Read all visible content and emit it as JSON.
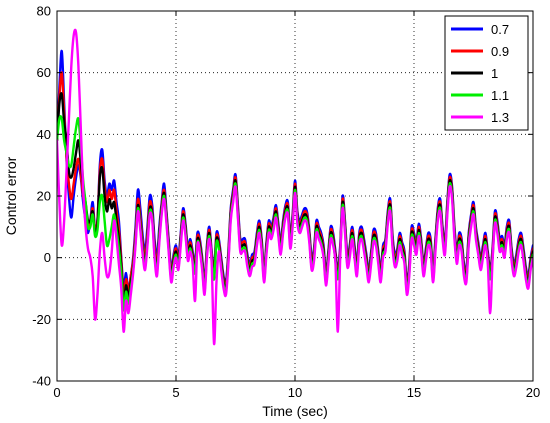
{
  "chart_data": {
    "type": "line",
    "title": "",
    "xlabel": "Time (sec)",
    "ylabel": "Control error",
    "xlim": [
      0,
      20
    ],
    "ylim": [
      -40,
      80
    ],
    "x_ticks": [
      0,
      5,
      10,
      15,
      20
    ],
    "y_ticks": [
      -40,
      -20,
      0,
      20,
      40,
      60,
      80
    ],
    "grid": true,
    "legend_position": "top-right",
    "x": [
      0.0,
      0.1,
      0.2,
      0.3,
      0.4,
      0.5,
      0.6,
      0.7,
      0.8,
      0.9,
      1.0,
      1.1,
      1.2,
      1.3,
      1.4,
      1.5,
      1.6,
      1.7,
      1.8,
      1.9,
      2.0,
      2.1,
      2.2,
      2.3,
      2.4,
      2.5,
      2.6,
      2.7,
      2.8,
      2.9,
      3.0,
      3.1,
      3.2,
      3.3,
      3.4,
      3.5,
      3.6,
      3.7,
      3.8,
      3.9,
      4.0,
      4.1,
      4.2,
      4.3,
      4.4,
      4.5,
      4.6,
      4.7,
      4.8,
      4.9,
      5.0,
      5.1,
      5.2,
      5.3,
      5.4,
      5.5,
      5.6,
      5.7,
      5.8,
      5.9,
      6.0,
      6.1,
      6.2,
      6.3,
      6.4,
      6.5,
      6.6,
      6.7,
      6.8,
      6.9,
      7.0,
      7.1,
      7.2,
      7.3,
      7.4,
      7.5,
      7.6,
      7.7,
      7.8,
      7.9,
      8.0,
      8.1,
      8.2,
      8.3,
      8.4,
      8.5,
      8.6,
      8.7,
      8.8,
      8.9,
      9.0,
      9.1,
      9.2,
      9.3,
      9.4,
      9.5,
      9.6,
      9.7,
      9.8,
      9.9,
      10.0,
      10.1,
      10.2,
      10.3,
      10.4,
      10.5,
      10.6,
      10.7,
      10.8,
      10.9,
      11.0,
      11.1,
      11.2,
      11.3,
      11.4,
      11.5,
      11.6,
      11.7,
      11.8,
      11.9,
      12.0,
      12.1,
      12.2,
      12.3,
      12.4,
      12.5,
      12.6,
      12.7,
      12.8,
      12.9,
      13.0,
      13.1,
      13.2,
      13.3,
      13.4,
      13.5,
      13.6,
      13.7,
      13.8,
      13.9,
      14.0,
      14.1,
      14.2,
      14.3,
      14.4,
      14.5,
      14.6,
      14.7,
      14.8,
      14.9,
      15.0,
      15.1,
      15.2,
      15.3,
      15.4,
      15.5,
      15.6,
      15.7,
      15.8,
      15.9,
      16.0,
      16.1,
      16.2,
      16.3,
      16.4,
      16.5,
      16.6,
      16.7,
      16.8,
      16.9,
      17.0,
      17.1,
      17.2,
      17.3,
      17.4,
      17.5,
      17.6,
      17.7,
      17.8,
      17.9,
      18.0,
      18.1,
      18.2,
      18.3,
      18.4,
      18.5,
      18.6,
      18.7,
      18.8,
      18.9,
      19.0,
      19.1,
      19.2,
      19.3,
      19.4,
      19.5,
      19.6,
      19.7,
      19.8,
      19.9,
      20.0
    ],
    "series": [
      {
        "name": "0.7",
        "color": "#0000ff",
        "values": [
          38.0,
          55.0,
          67.0,
          50.0,
          32.0,
          20.0,
          13.0,
          20.0,
          26.0,
          30.0,
          26.0,
          18.0,
          12.0,
          8.0,
          12.0,
          18.0,
          9.0,
          12.0,
          30.0,
          35.0,
          25.0,
          20.0,
          24.0,
          22.0,
          25.0,
          18.0,
          12.0,
          0.0,
          -10.0,
          -5.0,
          -11.0,
          -6.0,
          0.0,
          10.0,
          22.0,
          16.0,
          7.0,
          2.0,
          10.0,
          20.0,
          17.0,
          6.0,
          0.0,
          10.0,
          18.0,
          24.0,
          15.0,
          5.0,
          -4.0,
          1.0,
          4.0,
          0.0,
          8.0,
          16.0,
          11.0,
          3.0,
          6.0,
          2.0,
          -2.0,
          8.0,
          6.0,
          0.0,
          -8.0,
          4.0,
          10.0,
          2.0,
          -4.0,
          8.0,
          6.0,
          0.0,
          -6.0,
          -8.0,
          2.0,
          16.0,
          22.0,
          27.0,
          17.0,
          6.0,
          6.0,
          6.0,
          1.0,
          -2.0,
          1.0,
          2.0,
          8.0,
          12.0,
          6.0,
          -4.0,
          5.0,
          12.0,
          10.0,
          13.0,
          17.0,
          11.0,
          5.0,
          12.0,
          17.0,
          18.0,
          7.0,
          14.0,
          25.0,
          15.0,
          12.0,
          14.0,
          16.0,
          15.0,
          9.0,
          0.0,
          3.0,
          12.0,
          10.0,
          8.0,
          4.0,
          -5.0,
          2.0,
          10.0,
          8.0,
          2.0,
          -4.0,
          4.0,
          20.0,
          12.0,
          1.0,
          4.0,
          10.0,
          4.0,
          -2.0,
          8.0,
          10.0,
          6.0,
          1.0,
          -4.0,
          2.0,
          9.0,
          8.0,
          2.0,
          -4.0,
          4.0,
          6.0,
          15.0,
          19.0,
          7.0,
          1.0,
          3.0,
          8.0,
          5.0,
          2.0,
          -8.0,
          -2.0,
          10.0,
          8.0,
          5.0,
          11.0,
          6.0,
          -2.0,
          3.0,
          8.0,
          6.0,
          -4.0,
          6.0,
          16.0,
          19.0,
          10.0,
          5.0,
          18.0,
          27.0,
          23.0,
          10.0,
          2.0,
          8.0,
          6.0,
          -2.0,
          -4.0,
          8.0,
          14.0,
          18.0,
          10.0,
          5.0,
          0.0,
          4.0,
          8.0,
          2.0,
          -4.0,
          3.0,
          15.0,
          12.0,
          6.0,
          7.0,
          4.0,
          10.0,
          12.0,
          3.0,
          -2.0,
          1.0,
          6.0,
          8.0,
          3.0,
          -3.0,
          -6.0,
          0.0,
          4.0
        ]
      },
      {
        "name": "0.9",
        "color": "#ff0000",
        "values": [
          38.0,
          52.0,
          60.0,
          47.0,
          33.0,
          24.0,
          19.0,
          24.0,
          29.0,
          32.0,
          27.0,
          20.0,
          15.0,
          10.0,
          12.0,
          16.0,
          9.0,
          12.0,
          28.0,
          32.0,
          23.0,
          18.0,
          22.0,
          19.0,
          22.0,
          15.0,
          9.0,
          -1.0,
          -12.0,
          -7.0,
          -11.0,
          -6.0,
          -1.0,
          8.0,
          19.0,
          13.0,
          5.0,
          0.0,
          8.0,
          18.0,
          15.0,
          4.0,
          -2.0,
          8.0,
          17.0,
          22.0,
          14.0,
          4.0,
          -5.0,
          0.0,
          3.0,
          -1.0,
          7.0,
          15.0,
          10.0,
          2.0,
          5.0,
          1.0,
          -3.0,
          7.0,
          5.0,
          -1.0,
          -9.0,
          3.0,
          9.0,
          1.0,
          -5.0,
          7.0,
          5.0,
          -1.0,
          -7.0,
          -9.0,
          1.0,
          15.0,
          21.0,
          26.0,
          16.0,
          5.0,
          5.0,
          5.0,
          0.0,
          -3.0,
          0.0,
          1.0,
          7.0,
          11.0,
          5.0,
          -5.0,
          4.0,
          11.0,
          9.0,
          12.0,
          16.0,
          10.0,
          4.0,
          11.0,
          16.0,
          17.0,
          6.0,
          13.0,
          24.0,
          14.0,
          11.0,
          13.0,
          15.0,
          14.0,
          8.0,
          -1.0,
          2.0,
          11.0,
          9.0,
          7.0,
          3.0,
          -6.0,
          1.0,
          9.0,
          7.0,
          1.0,
          -5.0,
          3.0,
          19.0,
          11.0,
          0.0,
          3.0,
          9.0,
          3.0,
          -3.0,
          7.0,
          9.0,
          5.0,
          0.0,
          -5.0,
          1.0,
          8.0,
          7.0,
          1.0,
          -5.0,
          3.0,
          5.0,
          14.0,
          18.0,
          6.0,
          0.0,
          2.0,
          7.0,
          4.0,
          1.0,
          -9.0,
          -3.0,
          9.0,
          7.0,
          4.0,
          10.0,
          5.0,
          -3.0,
          2.0,
          7.0,
          5.0,
          -5.0,
          5.0,
          15.0,
          18.0,
          9.0,
          4.0,
          17.0,
          26.0,
          22.0,
          9.0,
          1.0,
          7.0,
          5.0,
          -3.0,
          -5.0,
          7.0,
          13.0,
          17.0,
          9.0,
          4.0,
          -1.0,
          3.0,
          7.0,
          1.0,
          -5.0,
          2.0,
          14.0,
          11.0,
          5.0,
          6.0,
          3.0,
          9.0,
          11.0,
          2.0,
          -3.0,
          0.0,
          5.0,
          7.0,
          2.0,
          -4.0,
          -7.0,
          -1.0,
          3.0
        ]
      },
      {
        "name": "1",
        "color": "#000000",
        "values": [
          38.0,
          50.0,
          53.0,
          44.0,
          38.0,
          28.0,
          26.0,
          29.0,
          34.0,
          38.0,
          31.0,
          23.0,
          18.0,
          12.0,
          12.0,
          15.0,
          8.0,
          11.0,
          26.0,
          29.0,
          20.0,
          15.0,
          19.0,
          16.0,
          18.0,
          12.0,
          6.0,
          -3.0,
          -15.0,
          -9.0,
          -13.0,
          -8.0,
          -3.0,
          6.0,
          17.0,
          11.0,
          3.0,
          -2.0,
          6.0,
          16.0,
          14.0,
          2.0,
          -4.0,
          7.0,
          16.0,
          21.0,
          13.0,
          3.0,
          -6.0,
          -1.0,
          2.0,
          -2.0,
          6.0,
          14.0,
          9.0,
          1.0,
          4.0,
          0.0,
          -4.0,
          6.0,
          4.0,
          -2.0,
          -10.0,
          2.0,
          8.0,
          0.0,
          -6.0,
          6.0,
          4.0,
          -2.0,
          -8.0,
          -10.0,
          0.0,
          14.0,
          20.0,
          25.0,
          15.0,
          4.0,
          4.0,
          4.0,
          -1.0,
          -4.0,
          -1.0,
          0.0,
          6.0,
          10.0,
          4.0,
          -6.0,
          3.0,
          10.0,
          8.0,
          11.0,
          15.0,
          9.0,
          3.0,
          10.0,
          15.0,
          16.0,
          5.0,
          12.0,
          23.0,
          13.0,
          10.0,
          12.0,
          14.0,
          13.0,
          7.0,
          -2.0,
          1.0,
          10.0,
          8.0,
          6.0,
          2.0,
          -7.0,
          0.0,
          8.0,
          6.0,
          0.0,
          -6.0,
          2.0,
          18.0,
          10.0,
          -1.0,
          2.0,
          8.0,
          2.0,
          -4.0,
          6.0,
          8.0,
          4.0,
          -1.0,
          -6.0,
          0.0,
          7.0,
          6.0,
          0.0,
          -6.0,
          2.0,
          4.0,
          13.0,
          17.0,
          5.0,
          -1.0,
          1.0,
          6.0,
          3.0,
          0.0,
          -10.0,
          -4.0,
          8.0,
          6.0,
          3.0,
          9.0,
          4.0,
          -4.0,
          1.0,
          6.0,
          4.0,
          -6.0,
          4.0,
          14.0,
          17.0,
          8.0,
          3.0,
          16.0,
          25.0,
          21.0,
          8.0,
          0.0,
          6.0,
          4.0,
          -4.0,
          -6.0,
          6.0,
          12.0,
          16.0,
          8.0,
          3.0,
          -2.0,
          2.0,
          6.0,
          0.0,
          -6.0,
          1.0,
          13.0,
          10.0,
          4.0,
          5.0,
          2.0,
          8.0,
          10.0,
          1.0,
          -4.0,
          -1.0,
          4.0,
          6.0,
          1.0,
          -5.0,
          -8.0,
          -2.0,
          2.0
        ]
      },
      {
        "name": "1.1",
        "color": "#00ee00",
        "values": [
          38.0,
          45.0,
          45.0,
          38.0,
          34.0,
          30.0,
          30.0,
          36.0,
          42.0,
          45.0,
          36.0,
          25.0,
          18.0,
          10.0,
          10.0,
          14.0,
          7.0,
          9.0,
          18.0,
          20.0,
          12.0,
          4.0,
          6.0,
          10.0,
          14.0,
          9.0,
          3.0,
          -5.0,
          -17.0,
          -11.0,
          -15.0,
          -10.0,
          -4.0,
          5.0,
          16.0,
          10.0,
          2.0,
          -3.0,
          5.0,
          15.0,
          13.0,
          1.0,
          -5.0,
          6.0,
          15.0,
          20.0,
          12.0,
          2.0,
          -7.0,
          -2.0,
          1.0,
          -3.0,
          5.0,
          13.0,
          8.0,
          0.0,
          3.0,
          -1.0,
          -5.0,
          5.0,
          3.0,
          -3.0,
          -11.0,
          1.0,
          7.0,
          -1.0,
          -7.0,
          5.0,
          3.0,
          -3.0,
          -9.0,
          -11.0,
          -1.0,
          13.0,
          19.0,
          24.0,
          14.0,
          3.0,
          3.0,
          3.0,
          -2.0,
          -5.0,
          -2.0,
          -1.0,
          5.0,
          9.0,
          3.0,
          -7.0,
          2.0,
          9.0,
          7.0,
          10.0,
          14.0,
          8.0,
          2.0,
          9.0,
          14.0,
          15.0,
          4.0,
          11.0,
          22.0,
          12.0,
          9.0,
          11.0,
          13.0,
          12.0,
          6.0,
          -3.0,
          0.0,
          9.0,
          7.0,
          5.0,
          1.0,
          -8.0,
          -1.0,
          7.0,
          5.0,
          -1.0,
          -7.0,
          1.0,
          17.0,
          9.0,
          -2.0,
          1.0,
          7.0,
          1.0,
          -5.0,
          5.0,
          7.0,
          3.0,
          -2.0,
          -7.0,
          -1.0,
          6.0,
          5.0,
          -1.0,
          -7.0,
          1.0,
          3.0,
          12.0,
          16.0,
          4.0,
          -2.0,
          0.0,
          5.0,
          2.0,
          -1.0,
          -11.0,
          -5.0,
          7.0,
          5.0,
          2.0,
          8.0,
          3.0,
          -5.0,
          0.0,
          5.0,
          3.0,
          -7.0,
          3.0,
          13.0,
          16.0,
          7.0,
          2.0,
          15.0,
          24.0,
          20.0,
          7.0,
          -1.0,
          5.0,
          3.0,
          -5.0,
          -7.0,
          5.0,
          11.0,
          15.0,
          7.0,
          2.0,
          -3.0,
          1.0,
          5.0,
          -1.0,
          -7.0,
          0.0,
          12.0,
          9.0,
          3.0,
          4.0,
          1.0,
          7.0,
          9.0,
          0.0,
          -5.0,
          -2.0,
          3.0,
          5.0,
          0.0,
          -6.0,
          -9.0,
          -3.0,
          1.0
        ]
      },
      {
        "name": "1.3",
        "color": "#ff00ff",
        "values": [
          38.0,
          18.0,
          4.0,
          12.0,
          28.0,
          45.0,
          62.0,
          72.0,
          73.0,
          62.0,
          42.0,
          22.0,
          10.0,
          3.0,
          0.0,
          -6.0,
          -20.0,
          -12.0,
          2.0,
          8.0,
          0.0,
          -6.0,
          -5.0,
          2.0,
          12.0,
          6.0,
          -2.0,
          -10.0,
          -24.0,
          -14.0,
          -18.0,
          -12.0,
          -5.0,
          4.0,
          15.0,
          9.0,
          1.0,
          -4.0,
          4.0,
          14.0,
          12.0,
          0.0,
          -6.0,
          5.0,
          14.0,
          19.0,
          11.0,
          1.0,
          -8.0,
          -3.0,
          0.0,
          -4.0,
          4.0,
          12.0,
          7.0,
          -1.0,
          2.0,
          -2.0,
          -14.0,
          4.0,
          2.0,
          -4.0,
          -12.0,
          0.0,
          6.0,
          -2.0,
          -28.0,
          -8.0,
          2.0,
          -4.0,
          -10.0,
          -12.0,
          -2.0,
          12.0,
          18.0,
          23.0,
          13.0,
          2.0,
          2.0,
          2.0,
          -3.0,
          -6.0,
          -3.0,
          -2.0,
          4.0,
          8.0,
          2.0,
          -8.0,
          1.0,
          8.0,
          6.0,
          9.0,
          13.0,
          7.0,
          1.0,
          8.0,
          13.0,
          14.0,
          3.0,
          10.0,
          21.0,
          11.0,
          8.0,
          10.0,
          12.0,
          11.0,
          5.0,
          -4.0,
          -1.0,
          8.0,
          6.0,
          4.0,
          0.0,
          -9.0,
          -2.0,
          6.0,
          4.0,
          -2.0,
          -24.0,
          0.0,
          16.0,
          8.0,
          -3.0,
          0.0,
          6.0,
          0.0,
          -6.0,
          4.0,
          6.0,
          2.0,
          -3.0,
          -8.0,
          -2.0,
          5.0,
          4.0,
          -2.0,
          -8.0,
          0.0,
          2.0,
          11.0,
          15.0,
          3.0,
          -3.0,
          -1.0,
          4.0,
          1.0,
          -2.0,
          -12.0,
          -6.0,
          6.0,
          4.0,
          1.0,
          7.0,
          2.0,
          -6.0,
          -1.0,
          4.0,
          2.0,
          -8.0,
          2.0,
          12.0,
          15.0,
          6.0,
          1.0,
          14.0,
          23.0,
          19.0,
          6.0,
          -2.0,
          4.0,
          2.0,
          -6.0,
          -8.0,
          4.0,
          10.0,
          14.0,
          6.0,
          1.0,
          -4.0,
          0.0,
          4.0,
          -2.0,
          -18.0,
          -1.0,
          11.0,
          8.0,
          2.0,
          3.0,
          0.0,
          6.0,
          8.0,
          -1.0,
          -6.0,
          -3.0,
          2.0,
          4.0,
          -1.0,
          -7.0,
          -10.0,
          -4.0,
          0.0
        ]
      }
    ]
  }
}
